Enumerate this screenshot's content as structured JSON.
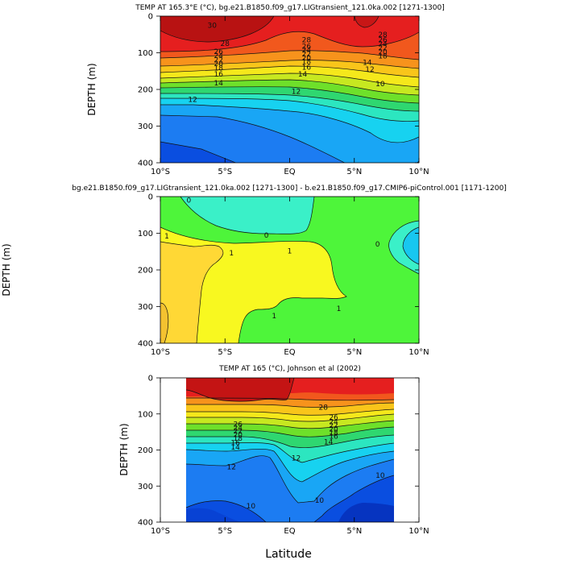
{
  "figure": {
    "x_axis_label": "Latitude"
  },
  "chart_data": [
    {
      "type": "heatmap",
      "title": "TEMP AT 165.3°E (°C), bg.e21.B1850.f09_g17.LIGtransient_121.0ka.002 [1271-1300]",
      "xlabel": "",
      "ylabel": "DEPTH (m)",
      "xlim": [
        -10,
        10
      ],
      "ylim": [
        400,
        0
      ],
      "x_ticks": [
        "10°S",
        "5°S",
        "EQ",
        "5°N",
        "10°N"
      ],
      "x_tick_values": [
        -10,
        -5,
        0,
        5,
        10
      ],
      "y_ticks": [
        "0",
        "100",
        "200",
        "300",
        "400"
      ],
      "y_tick_values": [
        0,
        100,
        200,
        300,
        400
      ],
      "contour_labels": [
        {
          "text": "30",
          "lat": -6,
          "depth": 25
        },
        {
          "text": "28",
          "lat": -5,
          "depth": 75
        },
        {
          "text": "28",
          "lat": 1.3,
          "depth": 65
        },
        {
          "text": "28",
          "lat": 7.2,
          "depth": 50
        },
        {
          "text": "26",
          "lat": -5.5,
          "depth": 97
        },
        {
          "text": "26",
          "lat": 1.3,
          "depth": 82
        },
        {
          "text": "26",
          "lat": 7.2,
          "depth": 65
        },
        {
          "text": "24",
          "lat": -5.5,
          "depth": 108
        },
        {
          "text": "24",
          "lat": 1.3,
          "depth": 92
        },
        {
          "text": "24",
          "lat": 7.2,
          "depth": 76
        },
        {
          "text": "22",
          "lat": -5.5,
          "depth": 120
        },
        {
          "text": "22",
          "lat": 1.3,
          "depth": 103
        },
        {
          "text": "22",
          "lat": 7.2,
          "depth": 87
        },
        {
          "text": "20",
          "lat": -5.5,
          "depth": 130
        },
        {
          "text": "20",
          "lat": 1.3,
          "depth": 114
        },
        {
          "text": "20",
          "lat": 7.2,
          "depth": 98
        },
        {
          "text": "18",
          "lat": -5.5,
          "depth": 142
        },
        {
          "text": "18",
          "lat": 1.3,
          "depth": 124
        },
        {
          "text": "18",
          "lat": 7.2,
          "depth": 109
        },
        {
          "text": "16",
          "lat": -5.5,
          "depth": 158
        },
        {
          "text": "16",
          "lat": 1.3,
          "depth": 140
        },
        {
          "text": "14",
          "lat": -5.5,
          "depth": 182
        },
        {
          "text": "14",
          "lat": 1.0,
          "depth": 158
        },
        {
          "text": "14",
          "lat": 6.0,
          "depth": 126
        },
        {
          "text": "12",
          "lat": -7.5,
          "depth": 228
        },
        {
          "text": "12",
          "lat": 0.5,
          "depth": 205
        },
        {
          "text": "12",
          "lat": 6.2,
          "depth": 145
        },
        {
          "text": "10",
          "lat": 7.0,
          "depth": 185
        }
      ],
      "colorbar": {
        "levels": [
          10,
          12,
          14,
          16,
          18,
          20,
          22,
          24,
          26,
          28,
          30
        ],
        "colors": [
          "#0a4ee0",
          "#1c7cf2",
          "#19a6f5",
          "#17d2f0",
          "#2ce6c0",
          "#2fd770",
          "#6ee02a",
          "#c7e820",
          "#f5e81b",
          "#f9c51a",
          "#f7931c",
          "#f1581d",
          "#e51f1f",
          "#b81212"
        ]
      }
    },
    {
      "type": "heatmap",
      "title": "bg.e21.B1850.f09_g17.LIGtransient_121.0ka.002 [1271-1300] - b.e21.B1850.f09_g17.CMIP6-piControl.001 [1171-1200]",
      "xlabel": "",
      "ylabel": "DEPTH (m)",
      "xlim": [
        -10,
        10
      ],
      "ylim": [
        400,
        0
      ],
      "x_ticks": [
        "10°S",
        "5°S",
        "EQ",
        "5°N",
        "10°N"
      ],
      "x_tick_values": [
        -10,
        -5,
        0,
        5,
        10
      ],
      "y_ticks": [
        "0",
        "100",
        "200",
        "300",
        "400"
      ],
      "y_tick_values": [
        0,
        100,
        200,
        300,
        400
      ],
      "contour_labels": [
        {
          "text": "0",
          "lat": -7.8,
          "depth": 10
        },
        {
          "text": "0",
          "lat": -1.8,
          "depth": 106
        },
        {
          "text": "0",
          "lat": 6.8,
          "depth": 130
        },
        {
          "text": "1",
          "lat": -9.5,
          "depth": 108
        },
        {
          "text": "1",
          "lat": -4.5,
          "depth": 154
        },
        {
          "text": "1",
          "lat": 0.0,
          "depth": 148
        },
        {
          "text": "1",
          "lat": -1.2,
          "depth": 325
        },
        {
          "text": "1",
          "lat": 3.8,
          "depth": 305
        }
      ],
      "colorbar": {
        "levels": [
          -1,
          0,
          1,
          2
        ],
        "colors": [
          "#17c7f0",
          "#3af0c8",
          "#4ef53a",
          "#f8f820",
          "#ffd835"
        ]
      }
    },
    {
      "type": "heatmap",
      "title": "TEMP AT 165 (°C), Johnson et al (2002)",
      "xlabel": "Latitude",
      "ylabel": "DEPTH (m)",
      "xlim": [
        -10,
        10
      ],
      "ylim": [
        400,
        0
      ],
      "data_extent_lat": [
        -8,
        8
      ],
      "x_ticks": [
        "10°S",
        "5°S",
        "EQ",
        "5°N",
        "10°N"
      ],
      "x_tick_values": [
        -10,
        -5,
        0,
        5,
        10
      ],
      "y_ticks": [
        "0",
        "100",
        "200",
        "300",
        "400"
      ],
      "y_tick_values": [
        0,
        100,
        200,
        300,
        400
      ],
      "contour_labels": [
        {
          "text": "28",
          "lat": 2.6,
          "depth": 82
        },
        {
          "text": "26",
          "lat": -4.0,
          "depth": 128
        },
        {
          "text": "26",
          "lat": 3.4,
          "depth": 110
        },
        {
          "text": "24",
          "lat": -4.0,
          "depth": 138
        },
        {
          "text": "24",
          "lat": 3.4,
          "depth": 122
        },
        {
          "text": "22",
          "lat": -4.0,
          "depth": 148
        },
        {
          "text": "22",
          "lat": 3.4,
          "depth": 132
        },
        {
          "text": "20",
          "lat": -4.0,
          "depth": 158
        },
        {
          "text": "20",
          "lat": 3.4,
          "depth": 142
        },
        {
          "text": "18",
          "lat": -4.0,
          "depth": 168
        },
        {
          "text": "18",
          "lat": 3.4,
          "depth": 152
        },
        {
          "text": "16",
          "lat": -4.2,
          "depth": 180
        },
        {
          "text": "16",
          "lat": 3.4,
          "depth": 162
        },
        {
          "text": "14",
          "lat": -4.2,
          "depth": 192
        },
        {
          "text": "14",
          "lat": 3.0,
          "depth": 178
        },
        {
          "text": "12",
          "lat": -4.5,
          "depth": 247
        },
        {
          "text": "12",
          "lat": 0.5,
          "depth": 222
        },
        {
          "text": "10",
          "lat": -3.0,
          "depth": 355
        },
        {
          "text": "10",
          "lat": 2.3,
          "depth": 340
        },
        {
          "text": "10",
          "lat": 7.0,
          "depth": 270
        }
      ],
      "colorbar": {
        "levels": [
          10,
          12,
          14,
          16,
          18,
          20,
          22,
          24,
          26,
          28,
          30
        ],
        "colors": [
          "#0a4ee0",
          "#1c7cf2",
          "#19a6f5",
          "#17d2f0",
          "#2ce6c0",
          "#2fd770",
          "#6ee02a",
          "#c7e820",
          "#f5e81b",
          "#f9c51a",
          "#f7931c",
          "#f1581d",
          "#e51f1f",
          "#b81212"
        ]
      }
    }
  ]
}
